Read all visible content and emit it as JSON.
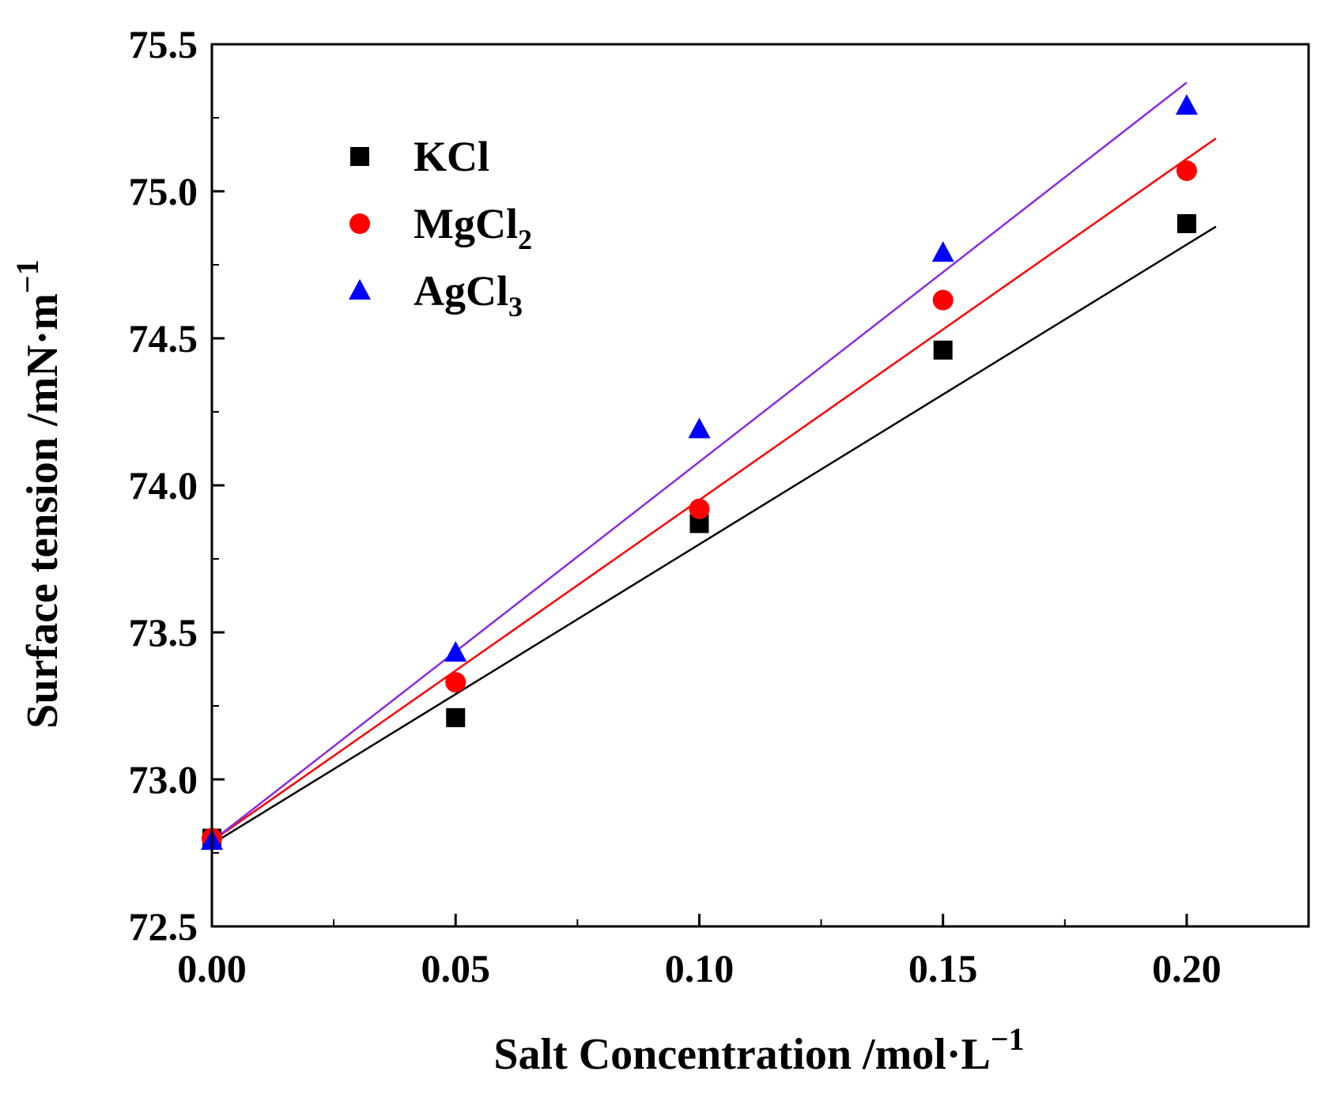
{
  "chart_data": {
    "type": "scatter",
    "title": "",
    "xlabel": "Salt Concentration /mol·L",
    "xlabel_sup": "−1",
    "ylabel": "Surface tension /mN·m",
    "ylabel_sup": "−1",
    "xlim": [
      0.0,
      0.225
    ],
    "ylim": [
      72.5,
      75.5
    ],
    "xticks": [
      0.0,
      0.05,
      0.1,
      0.15,
      0.2
    ],
    "xtick_labels": [
      "0.00",
      "0.05",
      "0.10",
      "0.15",
      "0.20"
    ],
    "xminor": [
      0.025,
      0.075,
      0.125,
      0.175,
      0.225
    ],
    "yticks": [
      72.5,
      73.0,
      73.5,
      74.0,
      74.5,
      75.0,
      75.5
    ],
    "ytick_labels": [
      "72.5",
      "73.0",
      "73.5",
      "74.0",
      "74.5",
      "75.0",
      "75.5"
    ],
    "yminor": [
      72.75,
      73.25,
      73.75,
      74.25,
      74.75,
      75.25
    ],
    "grid": false,
    "legend_position": "top-left",
    "series": [
      {
        "name": "KCl",
        "name_main": "KCl",
        "name_sub": "",
        "marker": "square",
        "color": "#000000",
        "fit_color": "#000000",
        "x": [
          0.0,
          0.05,
          0.1,
          0.15,
          0.2
        ],
        "y": [
          72.8,
          73.21,
          73.87,
          74.46,
          74.89
        ],
        "fit": {
          "x": [
            0.0,
            0.206
          ],
          "y": [
            72.78,
            74.88
          ]
        }
      },
      {
        "name": "MgCl2",
        "name_main": "MgCl",
        "name_sub": "2",
        "marker": "circle",
        "color": "#ff0000",
        "fit_color": "#ff0000",
        "x": [
          0.0,
          0.05,
          0.1,
          0.15,
          0.2
        ],
        "y": [
          72.8,
          73.33,
          73.92,
          74.63,
          75.07
        ],
        "fit": {
          "x": [
            0.0,
            0.206
          ],
          "y": [
            72.79,
            75.18
          ]
        }
      },
      {
        "name": "AgCl3",
        "name_main": "AgCl",
        "name_sub": "3",
        "marker": "triangle",
        "color": "#0000ff",
        "fit_color": "#8a2be2",
        "x": [
          0.0,
          0.05,
          0.1,
          0.15,
          0.2
        ],
        "y": [
          72.79,
          73.43,
          74.19,
          74.79,
          75.29
        ],
        "fit": {
          "x": [
            0.0,
            0.2
          ],
          "y": [
            72.79,
            75.37
          ]
        }
      }
    ]
  }
}
